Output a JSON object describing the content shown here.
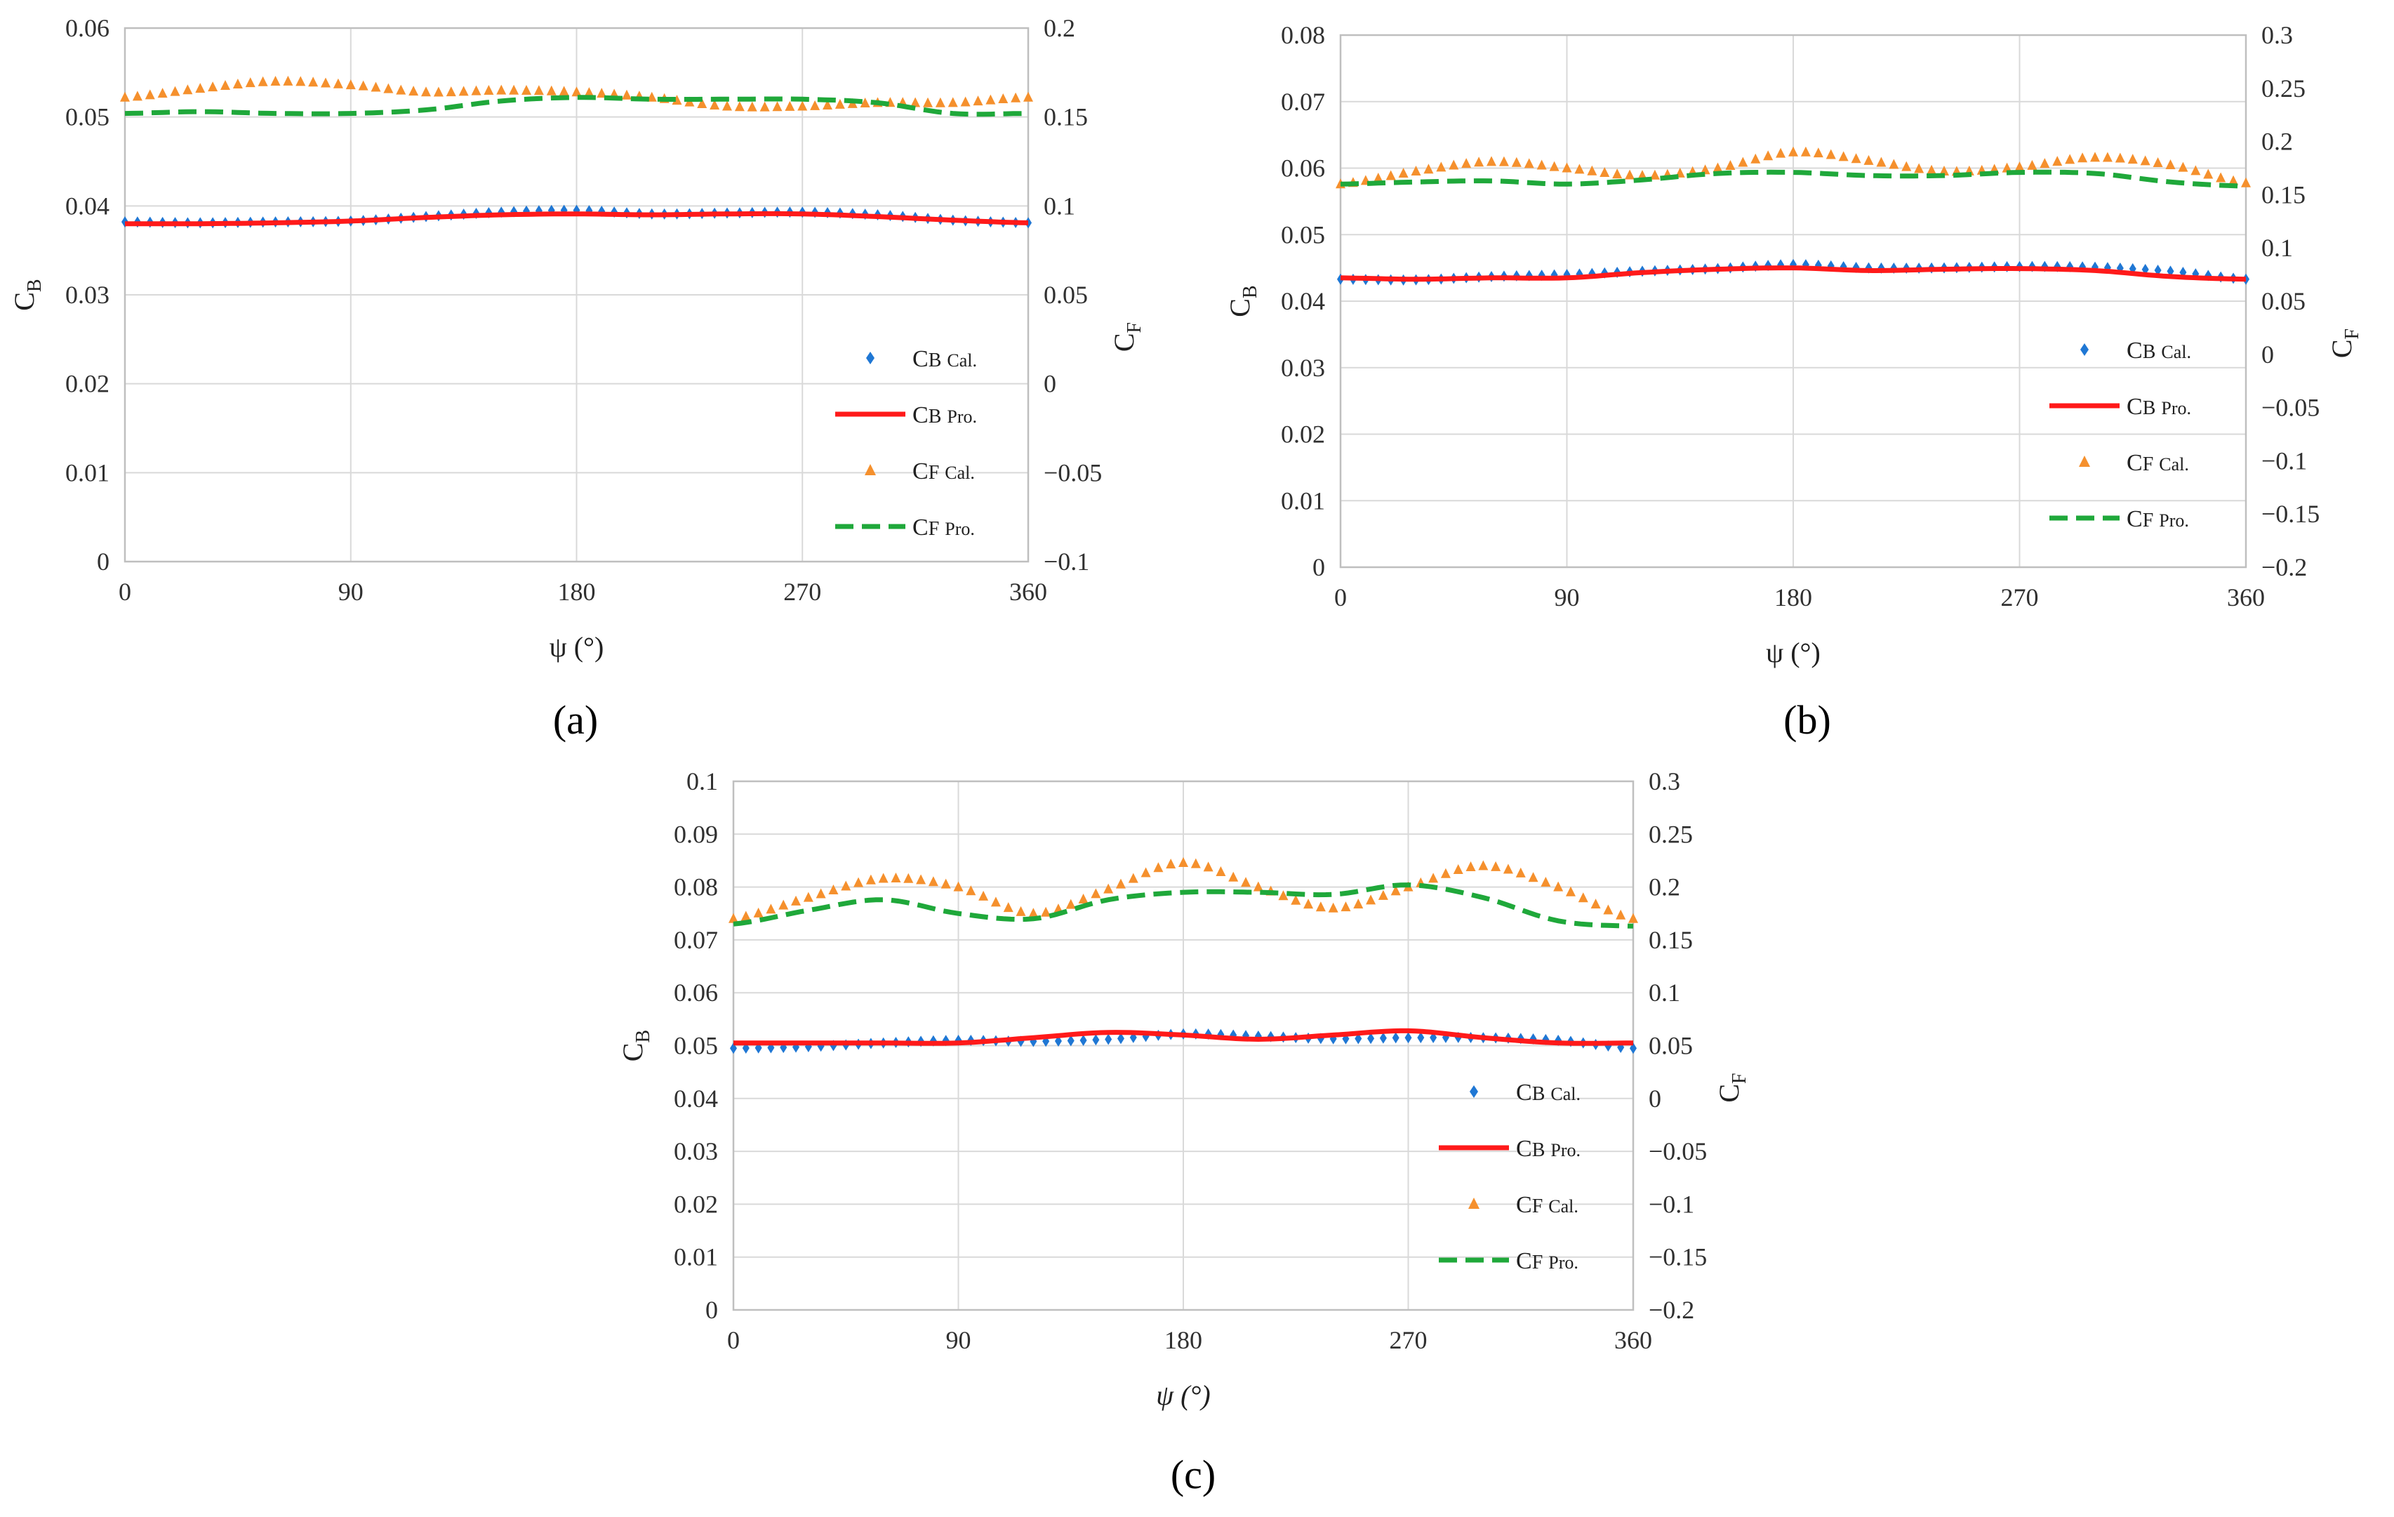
{
  "figure": {
    "panels": [
      {
        "label_text": "(a)"
      },
      {
        "label_text": "(b)"
      },
      {
        "label_text": "(c)"
      }
    ]
  },
  "colors": {
    "cb_cal": "#1f77d4",
    "cb_pro": "#ff1a1a",
    "cf_cal": "#f5902d",
    "cf_pro": "#1fa83a"
  },
  "chart_data": [
    {
      "type": "line",
      "id": "a",
      "title": "",
      "xlabel": "ψ (°)",
      "ylabel_left": "C_B",
      "ylabel_right": "C_F",
      "xlim": [
        0,
        360
      ],
      "xticks": [
        0,
        90,
        180,
        270,
        360
      ],
      "ylim_left": [
        0,
        0.06
      ],
      "yticks_left": [
        "0",
        "0.01",
        "0.02",
        "0.03",
        "0.04",
        "0.05",
        "0.06"
      ],
      "ylim_right": [
        -0.1,
        0.2
      ],
      "yticks_right": [
        "-0.1",
        "-0.05",
        "0",
        "0.05",
        "0.1",
        "0.15",
        "0.2"
      ],
      "legend": [
        "CB Cal.",
        "CB Pro.",
        "CF Cal.",
        "CF Pro."
      ],
      "legend_position": "lower-right",
      "series": [
        {
          "name": "CB Cal.",
          "axis": "left",
          "style": "diamond",
          "x": [
            0,
            30,
            60,
            90,
            120,
            150,
            180,
            210,
            240,
            270,
            300,
            330,
            360
          ],
          "y": [
            0.0382,
            0.0381,
            0.0382,
            0.0383,
            0.0388,
            0.0393,
            0.0395,
            0.0391,
            0.0392,
            0.0393,
            0.039,
            0.0384,
            0.0381
          ]
        },
        {
          "name": "CB Pro.",
          "axis": "left",
          "style": "solid",
          "x": [
            0,
            30,
            60,
            90,
            120,
            150,
            180,
            210,
            240,
            270,
            300,
            330,
            360
          ],
          "y": [
            0.038,
            0.038,
            0.0381,
            0.0383,
            0.0387,
            0.039,
            0.0391,
            0.039,
            0.0391,
            0.0391,
            0.0388,
            0.0384,
            0.0381
          ]
        },
        {
          "name": "CF Cal.",
          "axis": "right",
          "style": "triangle",
          "x": [
            0,
            30,
            60,
            90,
            120,
            150,
            180,
            210,
            240,
            270,
            300,
            330,
            360
          ],
          "y": [
            0.161,
            0.166,
            0.17,
            0.168,
            0.164,
            0.165,
            0.164,
            0.161,
            0.156,
            0.156,
            0.158,
            0.158,
            0.161
          ]
        },
        {
          "name": "CF Pro.",
          "axis": "right",
          "style": "dashed",
          "x": [
            0,
            30,
            60,
            90,
            120,
            150,
            180,
            210,
            240,
            270,
            300,
            330,
            360
          ],
          "y": [
            0.152,
            0.153,
            0.152,
            0.152,
            0.154,
            0.159,
            0.161,
            0.16,
            0.16,
            0.16,
            0.158,
            0.152,
            0.152
          ]
        }
      ]
    },
    {
      "type": "line",
      "id": "b",
      "title": "",
      "xlabel": "ψ (°)",
      "ylabel_left": "C_B",
      "ylabel_right": "C_F",
      "xlim": [
        0,
        360
      ],
      "xticks": [
        0,
        90,
        180,
        270,
        360
      ],
      "ylim_left": [
        0,
        0.08
      ],
      "yticks_left": [
        "0",
        "0.01",
        "0.02",
        "0.03",
        "0.04",
        "0.05",
        "0.06",
        "0.07",
        "0.08"
      ],
      "ylim_right": [
        -0.2,
        0.3
      ],
      "yticks_right": [
        "-0.2",
        "-0.15",
        "-0.1",
        "-0.05",
        "0",
        "0.05",
        "0.1",
        "0.15",
        "0.2",
        "0.25",
        "0.3"
      ],
      "legend": [
        "CB Cal.",
        "CB Pro.",
        "CF Cal.",
        "CF Pro."
      ],
      "legend_position": "lower-right",
      "series": [
        {
          "name": "CB Cal.",
          "axis": "left",
          "style": "diamond",
          "x": [
            0,
            30,
            60,
            90,
            120,
            150,
            180,
            210,
            240,
            270,
            300,
            330,
            360
          ],
          "y": [
            0.0433,
            0.0432,
            0.0437,
            0.044,
            0.0445,
            0.0449,
            0.0455,
            0.045,
            0.045,
            0.0452,
            0.0451,
            0.0445,
            0.0433
          ]
        },
        {
          "name": "CB Pro.",
          "axis": "left",
          "style": "solid",
          "x": [
            0,
            30,
            60,
            90,
            120,
            150,
            180,
            210,
            240,
            270,
            300,
            330,
            360
          ],
          "y": [
            0.0435,
            0.0433,
            0.0435,
            0.0435,
            0.0443,
            0.0448,
            0.045,
            0.0446,
            0.0448,
            0.0449,
            0.0446,
            0.0437,
            0.0433
          ]
        },
        {
          "name": "CF Cal.",
          "axis": "right",
          "style": "triangle",
          "x": [
            0,
            30,
            60,
            90,
            120,
            150,
            180,
            210,
            240,
            270,
            300,
            330,
            360
          ],
          "y": [
            0.16,
            0.172,
            0.181,
            0.175,
            0.168,
            0.175,
            0.19,
            0.182,
            0.172,
            0.176,
            0.185,
            0.178,
            0.161
          ]
        },
        {
          "name": "CF Pro.",
          "axis": "right",
          "style": "dashed",
          "x": [
            0,
            30,
            60,
            90,
            120,
            150,
            180,
            210,
            240,
            270,
            300,
            330,
            360
          ],
          "y": [
            0.16,
            0.162,
            0.163,
            0.16,
            0.164,
            0.17,
            0.171,
            0.168,
            0.168,
            0.171,
            0.17,
            0.162,
            0.158
          ]
        }
      ]
    },
    {
      "type": "line",
      "id": "c",
      "title": "",
      "xlabel": "ψ (°)",
      "ylabel_left": "C_B",
      "ylabel_right": "C_F",
      "xlim": [
        0,
        360
      ],
      "xticks": [
        0,
        90,
        180,
        270,
        360
      ],
      "ylim_left": [
        0,
        0.1
      ],
      "yticks_left": [
        "0",
        "0.01",
        "0.02",
        "0.03",
        "0.04",
        "0.05",
        "0.06",
        "0.07",
        "0.08",
        "0.09",
        "0.1"
      ],
      "ylim_right": [
        -0.2,
        0.3
      ],
      "yticks_right": [
        "-0.2",
        "-0.15",
        "-0.1",
        "-0.05",
        "0",
        "0.05",
        "0.1",
        "0.15",
        "0.2",
        "0.25",
        "0.3"
      ],
      "legend": [
        "CB Cal.",
        "CB Pro.",
        "CF Cal.",
        "CF Pro."
      ],
      "legend_position": "lower-right",
      "series": [
        {
          "name": "CB Cal.",
          "axis": "left",
          "style": "diamond",
          "x": [
            0,
            30,
            60,
            90,
            120,
            150,
            180,
            210,
            240,
            270,
            300,
            330,
            360
          ],
          "y": [
            0.0495,
            0.0498,
            0.0505,
            0.051,
            0.0508,
            0.0512,
            0.0522,
            0.0518,
            0.0513,
            0.0515,
            0.0515,
            0.051,
            0.0495
          ]
        },
        {
          "name": "CB Pro.",
          "axis": "left",
          "style": "solid",
          "x": [
            0,
            30,
            60,
            90,
            120,
            150,
            180,
            210,
            240,
            270,
            300,
            330,
            360
          ],
          "y": [
            0.0505,
            0.0505,
            0.0505,
            0.0505,
            0.0515,
            0.0525,
            0.052,
            0.0512,
            0.052,
            0.0528,
            0.0515,
            0.0505,
            0.0505
          ]
        },
        {
          "name": "CF Cal.",
          "axis": "right",
          "style": "triangle",
          "x": [
            0,
            30,
            60,
            90,
            120,
            150,
            180,
            210,
            240,
            270,
            300,
            330,
            360
          ],
          "y": [
            0.17,
            0.19,
            0.208,
            0.2,
            0.175,
            0.198,
            0.223,
            0.2,
            0.18,
            0.2,
            0.22,
            0.2,
            0.17
          ]
        },
        {
          "name": "CF Pro.",
          "axis": "right",
          "style": "dashed",
          "x": [
            0,
            30,
            60,
            90,
            120,
            150,
            180,
            210,
            240,
            270,
            300,
            330,
            360
          ],
          "y": [
            0.165,
            0.178,
            0.188,
            0.175,
            0.17,
            0.188,
            0.195,
            0.195,
            0.193,
            0.202,
            0.19,
            0.168,
            0.163
          ]
        }
      ]
    }
  ]
}
